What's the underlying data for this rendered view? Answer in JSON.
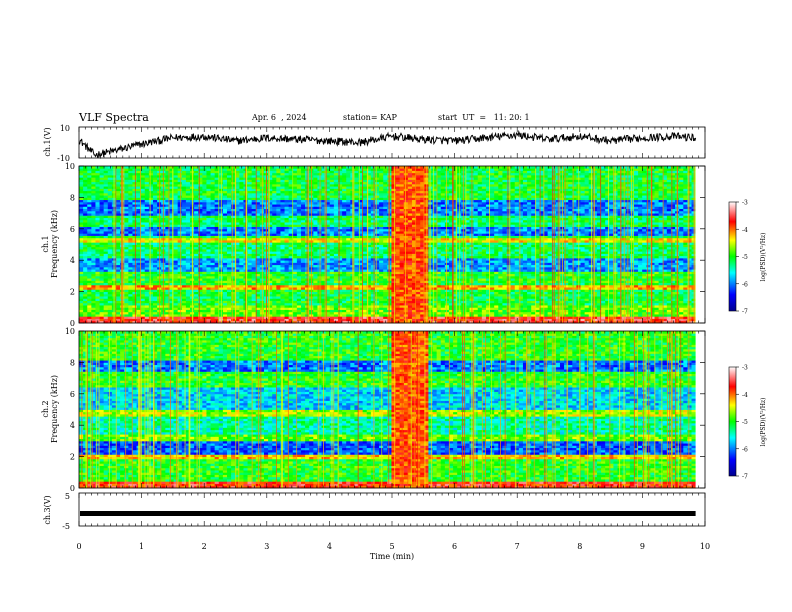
{
  "header": {
    "title": "VLF Spectra",
    "date": "Apr. 6  , 2024",
    "station": "station= KAP",
    "start": "start  UT  =   11: 20: 1"
  },
  "chart_data": [
    {
      "type": "line",
      "name": "ch1-waveform",
      "ylabel": "ch.1(V)",
      "x_range": [
        0,
        10
      ],
      "x_data_end": 9.85,
      "ylim": [
        -10,
        10
      ],
      "yticks": [
        "10",
        "-10"
      ],
      "description_values": {
        "x": [
          0,
          0.25,
          0.5,
          1.0,
          1.5,
          2.0,
          2.5,
          3.0,
          3.5,
          4.0,
          4.5,
          5.0,
          5.5,
          6.0,
          6.5,
          7.0,
          7.5,
          8.0,
          8.5,
          9.0,
          9.5,
          9.85
        ],
        "y": [
          2,
          -8,
          -6,
          -1,
          3,
          4,
          1,
          3,
          2,
          1,
          0,
          4,
          2,
          1,
          3,
          5,
          2,
          4,
          1,
          3,
          4,
          3
        ]
      }
    },
    {
      "type": "heatmap",
      "name": "ch1-spectrogram",
      "ylabel": "ch.1\nFrequency (kHz)",
      "xlim": [
        0,
        10
      ],
      "ylim": [
        0,
        10
      ],
      "yticks": [
        "0",
        "2",
        "4",
        "6",
        "8",
        "10"
      ],
      "colorbar": {
        "label": "log(PSD)(V²/Hz)",
        "range": [
          -7,
          -3
        ],
        "ticks": [
          "-3",
          "-4",
          "-5",
          "-6",
          "-7"
        ]
      },
      "burst_interval_min": [
        5.0,
        5.55
      ]
    },
    {
      "type": "heatmap",
      "name": "ch2-spectrogram",
      "ylabel": "ch.2\nFrequency (kHz)",
      "xlim": [
        0,
        10
      ],
      "ylim": [
        0,
        10
      ],
      "yticks": [
        "0",
        "2",
        "4",
        "6",
        "8",
        "10"
      ],
      "colorbar": {
        "label": "log(PSD)(V²/Hz)",
        "range": [
          -7,
          -3
        ],
        "ticks": [
          "-3",
          "-4",
          "-5",
          "-6",
          "-7"
        ]
      },
      "burst_interval_min": [
        5.0,
        5.55
      ]
    },
    {
      "type": "line",
      "name": "ch3-signal",
      "ylabel": "ch.3(V)",
      "xlim": [
        0,
        10
      ],
      "ylim": [
        -5,
        5
      ],
      "yticks": [
        "5",
        "-5"
      ],
      "level_v": -1.2
    }
  ],
  "xaxis": {
    "label": "Time  (min)",
    "ticks": [
      "0",
      "1",
      "2",
      "3",
      "4",
      "5",
      "6",
      "7",
      "8",
      "9",
      "10"
    ]
  },
  "colors": {
    "ink": "#000000"
  }
}
